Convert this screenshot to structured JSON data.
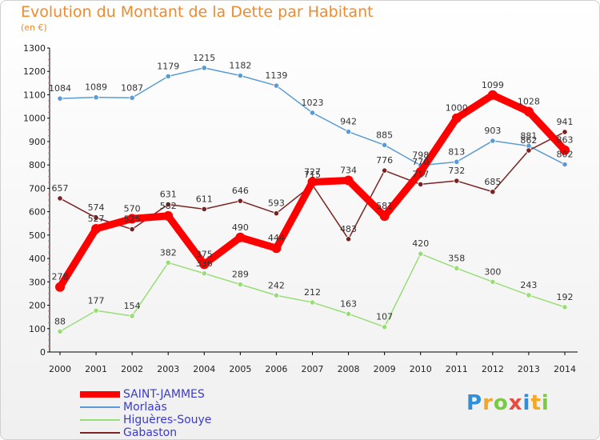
{
  "title": "Evolution du Montant de la Dette par Habitant",
  "subtitle": "(en €)",
  "logo": {
    "text": "Proxiti",
    "colors": [
      "#2f8fd8",
      "#f5a623",
      "#7ac943",
      "#e94b3c",
      "#2f8fd8",
      "#f5a623",
      "#7ac943"
    ]
  },
  "chart_data": {
    "type": "line",
    "x": [
      2000,
      2001,
      2002,
      2003,
      2004,
      2005,
      2006,
      2007,
      2008,
      2009,
      2010,
      2011,
      2012,
      2013,
      2014
    ],
    "ylim": [
      0,
      1300
    ],
    "yticks": [
      0,
      100,
      200,
      300,
      400,
      500,
      600,
      700,
      800,
      900,
      1000,
      1100,
      1200,
      1300
    ],
    "grid": false,
    "legend": "bottom-left",
    "series": [
      {
        "name": "SAINT-JAMMES",
        "color": "#ff0000",
        "values": [
          278,
          527,
          570,
          582,
          375,
          490,
          444,
          727,
          734,
          581,
          770,
          1000,
          1099,
          1028,
          863
        ]
      },
      {
        "name": "Morlaàs",
        "color": "#5b9bd5",
        "values": [
          1084,
          1089,
          1087,
          1179,
          1215,
          1182,
          1139,
          1023,
          942,
          885,
          798,
          813,
          903,
          881,
          802
        ]
      },
      {
        "name": "Higuères-Souye",
        "color": "#99dd77",
        "values": [
          88,
          177,
          154,
          382,
          336,
          289,
          242,
          212,
          163,
          107,
          420,
          358,
          300,
          243,
          192
        ]
      },
      {
        "name": "Gabaston",
        "color": "#7a2222",
        "values": [
          657,
          574,
          525,
          631,
          611,
          646,
          593,
          715,
          483,
          776,
          717,
          732,
          685,
          862,
          941
        ]
      }
    ]
  }
}
